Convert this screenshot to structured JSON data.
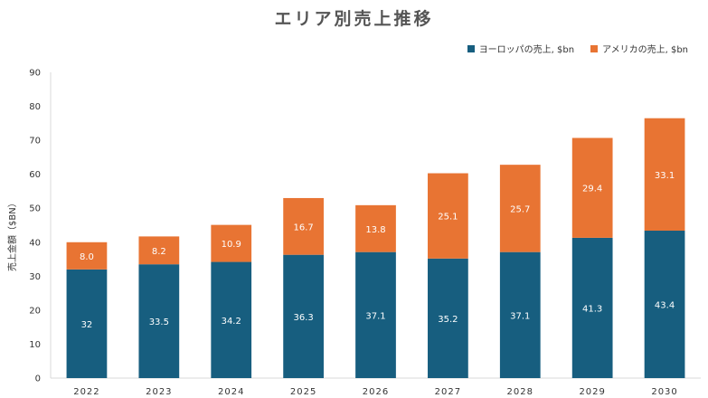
{
  "chart_data": {
    "type": "bar",
    "stacked": true,
    "title": "エリア別売上推移",
    "ylabel": "売上金額（$BN）",
    "xlabel": "",
    "categories": [
      "2022",
      "2023",
      "2024",
      "2025",
      "2026",
      "2027",
      "2028",
      "2029",
      "2030"
    ],
    "series": [
      {
        "name": "ヨーロッパの売上, $bn",
        "color": "#175e7f",
        "values": [
          32,
          33.5,
          34.2,
          36.3,
          37.1,
          35.2,
          37.1,
          41.3,
          43.4
        ],
        "labels": [
          "32",
          "33.5",
          "34.2",
          "36.3",
          "37.1",
          "35.2",
          "37.1",
          "41.3",
          "43.4"
        ]
      },
      {
        "name": "アメリカの売上, $bn",
        "color": "#e87433",
        "values": [
          8.0,
          8.2,
          10.9,
          16.7,
          13.8,
          25.1,
          25.7,
          29.4,
          33.1
        ],
        "labels": [
          "8.0",
          "8.2",
          "10.9",
          "16.7",
          "13.8",
          "25.1",
          "25.7",
          "29.4",
          "33.1"
        ]
      }
    ],
    "ylim": [
      0,
      90
    ],
    "yticks": [
      "0",
      "10",
      "20",
      "30",
      "40",
      "50",
      "60",
      "70",
      "80",
      "90"
    ],
    "grid": false,
    "legend_position": "top-right"
  }
}
